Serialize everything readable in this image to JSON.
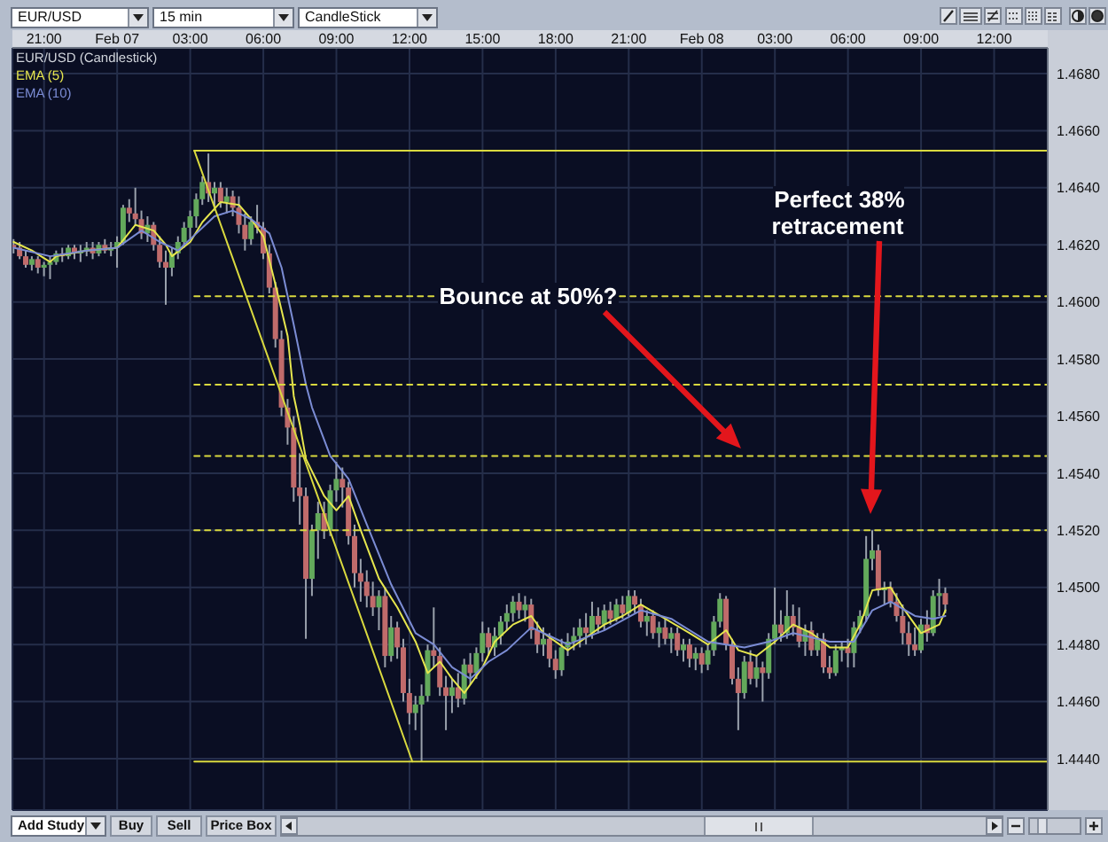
{
  "chart_data": {
    "type": "candlestick",
    "title": "EUR/USD (Candlestick)",
    "xlim": [
      "--02-06T19:42",
      "--02-08T14:12"
    ],
    "xticks": [
      {
        "value": "--02-06T21:00",
        "label": "21:00"
      },
      {
        "value": "--02-07T00:00",
        "label": "Feb 07"
      },
      {
        "value": "--02-07T03:00",
        "label": "03:00"
      },
      {
        "value": "--02-07T06:00",
        "label": "06:00"
      },
      {
        "value": "--02-07T09:00",
        "label": "09:00"
      },
      {
        "value": "--02-07T12:00",
        "label": "12:00"
      },
      {
        "value": "--02-07T15:00",
        "label": "15:00"
      },
      {
        "value": "--02-07T18:00",
        "label": "18:00"
      },
      {
        "value": "--02-07T21:00",
        "label": "21:00"
      },
      {
        "value": "--02-08T00:00",
        "label": "Feb 08"
      },
      {
        "value": "--02-08T03:00",
        "label": "03:00"
      },
      {
        "value": "--02-08T06:00",
        "label": "06:00"
      },
      {
        "value": "--02-08T09:00",
        "label": "09:00"
      },
      {
        "value": "--02-08T12:00",
        "label": "12:00"
      }
    ],
    "ylim": [
      1.4422,
      1.4689
    ],
    "yticks": [
      {
        "value": 1.444,
        "label": "1.4440"
      },
      {
        "value": 1.446,
        "label": "1.4460"
      },
      {
        "value": 1.448,
        "label": "1.4480"
      },
      {
        "value": 1.45,
        "label": "1.4500"
      },
      {
        "value": 1.452,
        "label": "1.4520"
      },
      {
        "value": 1.454,
        "label": "1.4540"
      },
      {
        "value": 1.456,
        "label": "1.4560"
      },
      {
        "value": 1.458,
        "label": "1.4580"
      },
      {
        "value": 1.46,
        "label": "1.4600"
      },
      {
        "value": 1.462,
        "label": "1.4620"
      },
      {
        "value": 1.464,
        "label": "1.4640"
      },
      {
        "value": 1.466,
        "label": "1.4660"
      },
      {
        "value": 1.468,
        "label": "1.4680"
      }
    ],
    "grid": true,
    "legend": "top left",
    "series": [
      {
        "x": [
          "--02-06T19:45",
          "--02-06T20:00",
          "--02-06T20:15",
          "--02-06T20:30",
          "--02-06T20:45",
          "--02-06T21:00",
          "--02-06T21:15",
          "--02-06T21:30",
          "--02-06T21:45",
          "--02-06T22:00",
          "--02-06T22:15",
          "--02-06T22:30",
          "--02-06T22:45",
          "--02-06T23:00",
          "--02-06T23:15",
          "--02-06T23:30",
          "--02-06T23:45",
          "--02-07T00:00",
          "--02-07T00:15",
          "--02-07T00:30",
          "--02-07T00:45",
          "--02-07T01:00",
          "--02-07T01:15",
          "--02-07T01:30",
          "--02-07T01:45",
          "--02-07T02:00",
          "--02-07T02:15",
          "--02-07T02:30",
          "--02-07T02:45",
          "--02-07T03:00",
          "--02-07T03:15",
          "--02-07T03:30",
          "--02-07T03:45",
          "--02-07T04:00",
          "--02-07T04:15",
          "--02-07T04:30",
          "--02-07T04:45",
          "--02-07T05:00",
          "--02-07T05:15",
          "--02-07T05:30",
          "--02-07T05:45",
          "--02-07T06:00",
          "--02-07T06:15",
          "--02-07T06:30",
          "--02-07T06:45",
          "--02-07T07:00",
          "--02-07T07:15",
          "--02-07T07:30",
          "--02-07T07:45",
          "--02-07T08:00",
          "--02-07T08:15",
          "--02-07T08:30",
          "--02-07T08:45",
          "--02-07T09:00",
          "--02-07T09:15",
          "--02-07T09:30",
          "--02-07T09:45",
          "--02-07T10:00",
          "--02-07T10:15",
          "--02-07T10:30",
          "--02-07T10:45",
          "--02-07T11:00",
          "--02-07T11:15",
          "--02-07T11:30",
          "--02-07T11:45",
          "--02-07T12:00",
          "--02-07T12:15",
          "--02-07T12:30",
          "--02-07T12:45",
          "--02-07T13:00",
          "--02-07T13:15",
          "--02-07T13:30",
          "--02-07T13:45",
          "--02-07T14:00",
          "--02-07T14:15",
          "--02-07T14:30",
          "--02-07T14:45",
          "--02-07T15:00",
          "--02-07T15:15",
          "--02-07T15:30",
          "--02-07T15:45",
          "--02-07T16:00",
          "--02-07T16:15",
          "--02-07T16:30",
          "--02-07T16:45",
          "--02-07T17:00",
          "--02-07T17:15",
          "--02-07T17:30",
          "--02-07T17:45",
          "--02-07T18:00",
          "--02-07T18:15",
          "--02-07T18:30",
          "--02-07T18:45",
          "--02-07T19:00",
          "--02-07T19:15",
          "--02-07T19:30",
          "--02-07T19:45",
          "--02-07T20:00",
          "--02-07T20:15",
          "--02-07T20:30",
          "--02-07T20:45",
          "--02-07T21:00",
          "--02-07T21:15",
          "--02-07T21:30",
          "--02-07T21:45",
          "--02-07T22:00",
          "--02-07T22:15",
          "--02-07T22:30",
          "--02-07T22:45",
          "--02-07T23:00",
          "--02-07T23:15",
          "--02-07T23:30",
          "--02-07T23:45",
          "--02-08T00:00",
          "--02-08T00:15",
          "--02-08T00:30",
          "--02-08T00:45",
          "--02-08T01:00",
          "--02-08T01:15",
          "--02-08T01:30",
          "--02-08T01:45",
          "--02-08T02:00",
          "--02-08T02:15",
          "--02-08T02:30",
          "--02-08T02:45",
          "--02-08T03:00",
          "--02-08T03:15",
          "--02-08T03:30",
          "--02-08T03:45",
          "--02-08T04:00",
          "--02-08T04:15",
          "--02-08T04:30",
          "--02-08T04:45",
          "--02-08T05:00",
          "--02-08T05:15",
          "--02-08T05:30",
          "--02-08T05:45",
          "--02-08T06:00",
          "--02-08T06:15",
          "--02-08T06:30",
          "--02-08T06:45",
          "--02-08T07:00",
          "--02-08T07:15",
          "--02-08T07:30",
          "--02-08T07:45",
          "--02-08T08:00",
          "--02-08T08:15",
          "--02-08T08:30",
          "--02-08T08:45",
          "--02-08T09:00",
          "--02-08T09:15",
          "--02-08T09:30",
          "--02-08T09:45",
          "--02-08T10:00"
        ],
        "ohlc": [
          [
            1.462,
            1.4622,
            1.4617,
            1.4619
          ],
          [
            1.4619,
            1.4621,
            1.4615,
            1.4616
          ],
          [
            1.4616,
            1.4618,
            1.4612,
            1.4613
          ],
          [
            1.4613,
            1.4616,
            1.4611,
            1.4615
          ],
          [
            1.4615,
            1.4616,
            1.461,
            1.4612
          ],
          [
            1.4612,
            1.4614,
            1.4609,
            1.4613
          ],
          [
            1.4613,
            1.4616,
            1.4608,
            1.4614
          ],
          [
            1.4614,
            1.4618,
            1.4613,
            1.4617
          ],
          [
            1.4617,
            1.4619,
            1.4614,
            1.4616
          ],
          [
            1.4616,
            1.462,
            1.4615,
            1.4619
          ],
          [
            1.4619,
            1.462,
            1.4615,
            1.4617
          ],
          [
            1.4617,
            1.462,
            1.4614,
            1.4618
          ],
          [
            1.4618,
            1.4621,
            1.4616,
            1.4619
          ],
          [
            1.4619,
            1.4621,
            1.4615,
            1.4617
          ],
          [
            1.4617,
            1.4621,
            1.4616,
            1.462
          ],
          [
            1.462,
            1.4622,
            1.4617,
            1.4618
          ],
          [
            1.4618,
            1.4621,
            1.4616,
            1.4619
          ],
          [
            1.4619,
            1.4623,
            1.4612,
            1.4621
          ],
          [
            1.4621,
            1.4634,
            1.462,
            1.4633
          ],
          [
            1.4633,
            1.4636,
            1.4628,
            1.4631
          ],
          [
            1.4631,
            1.464,
            1.4627,
            1.4629
          ],
          [
            1.4629,
            1.4632,
            1.4622,
            1.4624
          ],
          [
            1.4624,
            1.463,
            1.4621,
            1.4627
          ],
          [
            1.4627,
            1.4628,
            1.4618,
            1.462
          ],
          [
            1.462,
            1.4623,
            1.4612,
            1.4614
          ],
          [
            1.4614,
            1.4618,
            1.4599,
            1.4612
          ],
          [
            1.4612,
            1.4619,
            1.4609,
            1.4617
          ],
          [
            1.4617,
            1.4623,
            1.4615,
            1.4621
          ],
          [
            1.4621,
            1.4628,
            1.4619,
            1.4626
          ],
          [
            1.4626,
            1.4632,
            1.4622,
            1.463
          ],
          [
            1.463,
            1.4638,
            1.4626,
            1.4636
          ],
          [
            1.4636,
            1.4644,
            1.4634,
            1.4642
          ],
          [
            1.4642,
            1.4652,
            1.4635,
            1.4638
          ],
          [
            1.4638,
            1.4642,
            1.4632,
            1.464
          ],
          [
            1.464,
            1.4642,
            1.4633,
            1.4635
          ],
          [
            1.4635,
            1.464,
            1.4631,
            1.4637
          ],
          [
            1.4637,
            1.4639,
            1.463,
            1.4633
          ],
          [
            1.4633,
            1.4637,
            1.4624,
            1.4627
          ],
          [
            1.4627,
            1.4631,
            1.4618,
            1.4622
          ],
          [
            1.4622,
            1.463,
            1.462,
            1.4628
          ],
          [
            1.4628,
            1.4634,
            1.4624,
            1.4626
          ],
          [
            1.4626,
            1.4628,
            1.4615,
            1.4617
          ],
          [
            1.4617,
            1.462,
            1.4603,
            1.4605
          ],
          [
            1.4605,
            1.4607,
            1.4584,
            1.4587
          ],
          [
            1.4587,
            1.459,
            1.456,
            1.4563
          ],
          [
            1.4563,
            1.4566,
            1.455,
            1.4556
          ],
          [
            1.4556,
            1.456,
            1.453,
            1.4535
          ],
          [
            1.4535,
            1.4547,
            1.4522,
            1.4532
          ],
          [
            1.4532,
            1.4535,
            1.4482,
            1.4503
          ],
          [
            1.4503,
            1.4522,
            1.4497,
            1.452
          ],
          [
            1.452,
            1.453,
            1.451,
            1.4526
          ],
          [
            1.4526,
            1.453,
            1.4517,
            1.452
          ],
          [
            1.452,
            1.4536,
            1.4518,
            1.4534
          ],
          [
            1.4534,
            1.4544,
            1.453,
            1.4538
          ],
          [
            1.4538,
            1.4542,
            1.4528,
            1.4535
          ],
          [
            1.4535,
            1.4537,
            1.4515,
            1.4518
          ],
          [
            1.4518,
            1.4522,
            1.45,
            1.4505
          ],
          [
            1.4505,
            1.451,
            1.4495,
            1.4502
          ],
          [
            1.4502,
            1.4506,
            1.4493,
            1.4497
          ],
          [
            1.4497,
            1.4502,
            1.449,
            1.4493
          ],
          [
            1.4493,
            1.4499,
            1.4485,
            1.4497
          ],
          [
            1.4497,
            1.45,
            1.4472,
            1.4476
          ],
          [
            1.4476,
            1.449,
            1.4474,
            1.4486
          ],
          [
            1.4486,
            1.4488,
            1.4475,
            1.4479
          ],
          [
            1.4479,
            1.4482,
            1.446,
            1.4463
          ],
          [
            1.4463,
            1.4468,
            1.4452,
            1.4456
          ],
          [
            1.4456,
            1.4462,
            1.445,
            1.4459
          ],
          [
            1.4459,
            1.4466,
            1.4439,
            1.4462
          ],
          [
            1.4462,
            1.448,
            1.446,
            1.4478
          ],
          [
            1.4478,
            1.4493,
            1.4472,
            1.4476
          ],
          [
            1.4476,
            1.4479,
            1.4462,
            1.4465
          ],
          [
            1.4465,
            1.4469,
            1.445,
            1.4462
          ],
          [
            1.4462,
            1.4468,
            1.4456,
            1.4465
          ],
          [
            1.4465,
            1.447,
            1.4458,
            1.4461
          ],
          [
            1.4461,
            1.4475,
            1.4459,
            1.4473
          ],
          [
            1.4473,
            1.4477,
            1.4466,
            1.447
          ],
          [
            1.447,
            1.4479,
            1.4468,
            1.4477
          ],
          [
            1.4477,
            1.4488,
            1.4474,
            1.4484
          ],
          [
            1.4484,
            1.4486,
            1.4476,
            1.4479
          ],
          [
            1.4479,
            1.4486,
            1.4476,
            1.4483
          ],
          [
            1.4483,
            1.449,
            1.448,
            1.4488
          ],
          [
            1.4488,
            1.4494,
            1.4485,
            1.4491
          ],
          [
            1.4491,
            1.4497,
            1.4488,
            1.4495
          ],
          [
            1.4495,
            1.4498,
            1.4489,
            1.4492
          ],
          [
            1.4492,
            1.4497,
            1.4488,
            1.4494
          ],
          [
            1.4494,
            1.4496,
            1.4482,
            1.4485
          ],
          [
            1.4485,
            1.4488,
            1.4477,
            1.448
          ],
          [
            1.448,
            1.4486,
            1.4476,
            1.4482
          ],
          [
            1.4482,
            1.4484,
            1.4472,
            1.4475
          ],
          [
            1.4475,
            1.4478,
            1.4468,
            1.4471
          ],
          [
            1.4471,
            1.4482,
            1.4469,
            1.4479
          ],
          [
            1.4479,
            1.4484,
            1.4476,
            1.4481
          ],
          [
            1.4481,
            1.4486,
            1.4478,
            1.4483
          ],
          [
            1.4483,
            1.4489,
            1.4479,
            1.4486
          ],
          [
            1.4486,
            1.4491,
            1.448,
            1.4484
          ],
          [
            1.4484,
            1.4495,
            1.4482,
            1.449
          ],
          [
            1.449,
            1.4493,
            1.4484,
            1.4487
          ],
          [
            1.4487,
            1.4494,
            1.4485,
            1.4492
          ],
          [
            1.4492,
            1.4495,
            1.4487,
            1.4489
          ],
          [
            1.4489,
            1.4496,
            1.4488,
            1.4494
          ],
          [
            1.4494,
            1.4497,
            1.4489,
            1.4491
          ],
          [
            1.4491,
            1.4499,
            1.449,
            1.4497
          ],
          [
            1.4497,
            1.4499,
            1.4491,
            1.4494
          ],
          [
            1.4494,
            1.4496,
            1.4486,
            1.4488
          ],
          [
            1.4488,
            1.4492,
            1.4483,
            1.449
          ],
          [
            1.449,
            1.4492,
            1.4482,
            1.4484
          ],
          [
            1.4484,
            1.4488,
            1.4479,
            1.4486
          ],
          [
            1.4486,
            1.4489,
            1.448,
            1.4482
          ],
          [
            1.4482,
            1.4486,
            1.4477,
            1.4484
          ],
          [
            1.4484,
            1.4486,
            1.4476,
            1.4478
          ],
          [
            1.4478,
            1.4482,
            1.4474,
            1.448
          ],
          [
            1.448,
            1.4482,
            1.4472,
            1.4475
          ],
          [
            1.4475,
            1.4479,
            1.4471,
            1.4477
          ],
          [
            1.4477,
            1.4479,
            1.447,
            1.4473
          ],
          [
            1.4473,
            1.448,
            1.4471,
            1.4478
          ],
          [
            1.4478,
            1.449,
            1.4476,
            1.4488
          ],
          [
            1.4488,
            1.4498,
            1.4486,
            1.4496
          ],
          [
            1.4496,
            1.4497,
            1.4478,
            1.448
          ],
          [
            1.448,
            1.4482,
            1.4466,
            1.4468
          ],
          [
            1.4468,
            1.4472,
            1.445,
            1.4463
          ],
          [
            1.4463,
            1.4476,
            1.4461,
            1.4474
          ],
          [
            1.4474,
            1.4478,
            1.4466,
            1.4468
          ],
          [
            1.4468,
            1.4476,
            1.4465,
            1.4472
          ],
          [
            1.4472,
            1.4474,
            1.446,
            1.447
          ],
          [
            1.447,
            1.4484,
            1.4468,
            1.4482
          ],
          [
            1.4482,
            1.45,
            1.448,
            1.4487
          ],
          [
            1.4487,
            1.4492,
            1.4481,
            1.4484
          ],
          [
            1.4484,
            1.4499,
            1.4482,
            1.449
          ],
          [
            1.449,
            1.4494,
            1.4483,
            1.4486
          ],
          [
            1.4486,
            1.4493,
            1.4479,
            1.4481
          ],
          [
            1.4481,
            1.4487,
            1.4476,
            1.4485
          ],
          [
            1.4485,
            1.4488,
            1.4476,
            1.4478
          ],
          [
            1.4478,
            1.4484,
            1.4476,
            1.4482
          ],
          [
            1.4482,
            1.4484,
            1.447,
            1.4472
          ],
          [
            1.4472,
            1.4476,
            1.4468,
            1.447
          ],
          [
            1.447,
            1.448,
            1.4469,
            1.4478
          ],
          [
            1.4478,
            1.4481,
            1.4474,
            1.4479
          ],
          [
            1.4479,
            1.4482,
            1.4472,
            1.4477
          ],
          [
            1.4477,
            1.4488,
            1.4472,
            1.4486
          ],
          [
            1.4486,
            1.4492,
            1.4484,
            1.449
          ],
          [
            1.449,
            1.4518,
            1.4488,
            1.451
          ],
          [
            1.451,
            1.452,
            1.4506,
            1.4513
          ],
          [
            1.4513,
            1.4515,
            1.4497,
            1.4499
          ],
          [
            1.4499,
            1.4502,
            1.4494,
            1.45
          ],
          [
            1.45,
            1.4502,
            1.4493,
            1.4495
          ],
          [
            1.4495,
            1.4498,
            1.4488,
            1.449
          ],
          [
            1.449,
            1.4494,
            1.448,
            1.4484
          ],
          [
            1.4484,
            1.4488,
            1.4476,
            1.448
          ],
          [
            1.448,
            1.4486,
            1.4476,
            1.4478
          ],
          [
            1.4478,
            1.4489,
            1.4477,
            1.4487
          ],
          [
            1.4487,
            1.4492,
            1.4481,
            1.4484
          ],
          [
            1.4484,
            1.4499,
            1.4483,
            1.4497
          ],
          [
            1.4497,
            1.4503,
            1.449,
            1.4498
          ],
          [
            1.4498,
            1.45,
            1.4491,
            1.4494
          ]
        ]
      },
      {
        "type": "line",
        "name": "EMA (5)",
        "color": "#e6e64e",
        "x": [
          "--02-06T19:45",
          "--02-06T20:30",
          "--02-06T21:15",
          "--02-06T21:30",
          "--02-06T22:45",
          "--02-07T00:00",
          "--02-07T00:45",
          "--02-07T01:30",
          "--02-07T02:00",
          "--02-07T02:15",
          "--02-07T03:00",
          "--02-07T03:30",
          "--02-07T04:15",
          "--02-07T05:00",
          "--02-07T05:30",
          "--02-07T06:00",
          "--02-07T06:30",
          "--02-07T07:00",
          "--02-07T07:15",
          "--02-07T07:30",
          "--02-07T07:45",
          "--02-07T08:30",
          "--02-07T09:00",
          "--02-07T09:30",
          "--02-07T10:00",
          "--02-07T10:45",
          "--02-07T11:30",
          "--02-07T12:15",
          "--02-07T12:45",
          "--02-07T13:15",
          "--02-07T13:45",
          "--02-07T14:15",
          "--02-07T15:00",
          "--02-07T15:30",
          "--02-07T16:15",
          "--02-07T17:00",
          "--02-07T17:30",
          "--02-07T18:30",
          "--02-07T19:00",
          "--02-07T20:00",
          "--02-07T20:45",
          "--02-07T21:30",
          "--02-07T22:30",
          "--02-07T23:30",
          "--02-08T00:15",
          "--02-08T01:00",
          "--02-08T01:30",
          "--02-08T02:15",
          "--02-08T03:00",
          "--02-08T03:45",
          "--02-08T04:30",
          "--02-08T05:15",
          "--02-08T06:00",
          "--02-08T06:30",
          "--02-08T07:00",
          "--02-08T07:45",
          "--02-08T08:15",
          "--02-08T09:00",
          "--02-08T09:45",
          "--02-08T10:00"
        ],
        "values": [
          1.4621,
          1.4618,
          1.4614,
          1.4616,
          1.4618,
          1.4619,
          1.4627,
          1.4625,
          1.462,
          1.4616,
          1.4621,
          1.4628,
          1.4635,
          1.4634,
          1.4629,
          1.4623,
          1.4606,
          1.4588,
          1.4567,
          1.4557,
          1.4545,
          1.4532,
          1.4527,
          1.4532,
          1.452,
          1.4503,
          1.4493,
          1.4481,
          1.447,
          1.4474,
          1.4468,
          1.4463,
          1.4472,
          1.4481,
          1.4487,
          1.449,
          1.4484,
          1.4478,
          1.4481,
          1.4487,
          1.449,
          1.4494,
          1.4489,
          1.4484,
          1.448,
          1.4485,
          1.4478,
          1.4476,
          1.4481,
          1.4487,
          1.4484,
          1.4479,
          1.4479,
          1.4487,
          1.4499,
          1.45,
          1.4493,
          1.4484,
          1.4487,
          1.4492
        ]
      },
      {
        "type": "line",
        "name": "EMA (10)",
        "color": "#7b8cd4",
        "x": [
          "--02-06T19:45",
          "--02-06T21:15",
          "--02-06T22:45",
          "--02-07T00:00",
          "--02-07T01:00",
          "--02-07T01:45",
          "--02-07T02:30",
          "--02-07T03:15",
          "--02-07T04:00",
          "--02-07T04:45",
          "--02-07T05:30",
          "--02-07T06:15",
          "--02-07T06:45",
          "--02-07T07:15",
          "--02-07T07:45",
          "--02-07T08:00",
          "--02-07T08:45",
          "--02-07T09:30",
          "--02-07T10:15",
          "--02-07T11:15",
          "--02-07T12:15",
          "--02-07T13:00",
          "--02-07T13:45",
          "--02-07T14:30",
          "--02-07T15:15",
          "--02-07T16:00",
          "--02-07T17:00",
          "--02-07T17:45",
          "--02-07T18:30",
          "--02-07T20:00",
          "--02-07T21:30",
          "--02-07T22:45",
          "--02-08T00:15",
          "--02-08T01:45",
          "--02-08T02:45",
          "--02-08T03:45",
          "--02-08T05:15",
          "--02-08T06:15",
          "--02-08T07:00",
          "--02-08T07:45",
          "--02-08T08:45",
          "--02-08T09:30",
          "--02-08T10:00"
        ],
        "values": [
          1.4619,
          1.4616,
          1.4618,
          1.4619,
          1.4625,
          1.4621,
          1.4618,
          1.4624,
          1.463,
          1.4632,
          1.4629,
          1.4624,
          1.4612,
          1.4592,
          1.4571,
          1.4563,
          1.4546,
          1.4538,
          1.4522,
          1.4501,
          1.4484,
          1.448,
          1.4472,
          1.4468,
          1.4474,
          1.4478,
          1.4486,
          1.4483,
          1.448,
          1.4485,
          1.4492,
          1.4489,
          1.4481,
          1.4479,
          1.4481,
          1.4484,
          1.4481,
          1.4481,
          1.4492,
          1.4495,
          1.449,
          1.4489,
          1.449
        ]
      },
      {
        "type": "line",
        "color": "#d9d93f",
        "line_style": "solid",
        "x": [
          "--02-07T03:10",
          "--02-08T14:12"
        ],
        "values": [
          1.4653,
          1.4653
        ]
      },
      {
        "type": "line",
        "color": "#d9d93f",
        "line_style": "dashed",
        "x": [
          "--02-07T03:10",
          "--02-08T14:12"
        ],
        "values": [
          1.4602,
          1.4602
        ]
      },
      {
        "type": "line",
        "color": "#d9d93f",
        "line_style": "dashed",
        "x": [
          "--02-07T03:10",
          "--02-08T14:12"
        ],
        "values": [
          1.4571,
          1.4571
        ]
      },
      {
        "type": "line",
        "color": "#d9d93f",
        "line_style": "dashed",
        "x": [
          "--02-07T03:10",
          "--02-08T14:12"
        ],
        "values": [
          1.4546,
          1.4546
        ]
      },
      {
        "type": "line",
        "color": "#d9d93f",
        "line_style": "dashed",
        "x": [
          "--02-07T03:10",
          "--02-08T14:12"
        ],
        "values": [
          1.452,
          1.452
        ]
      },
      {
        "type": "line",
        "color": "#d9d93f",
        "line_style": "solid",
        "x": [
          "--02-07T03:10",
          "--02-08T14:12"
        ],
        "values": [
          1.4439,
          1.4439
        ]
      },
      {
        "type": "line",
        "color": "#d9d93f",
        "line_style": "solid",
        "x": [
          "--02-07T03:10",
          "--02-07T12:07"
        ],
        "values": [
          1.4653,
          1.4439
        ]
      }
    ],
    "annotations": [
      "Bounce at 50%?",
      "Perfect 38% retracement",
      "EUR/USD",
      "15 min",
      "CandleStick",
      "Add Study",
      "Buy",
      "Sell",
      "Price Box"
    ]
  }
}
